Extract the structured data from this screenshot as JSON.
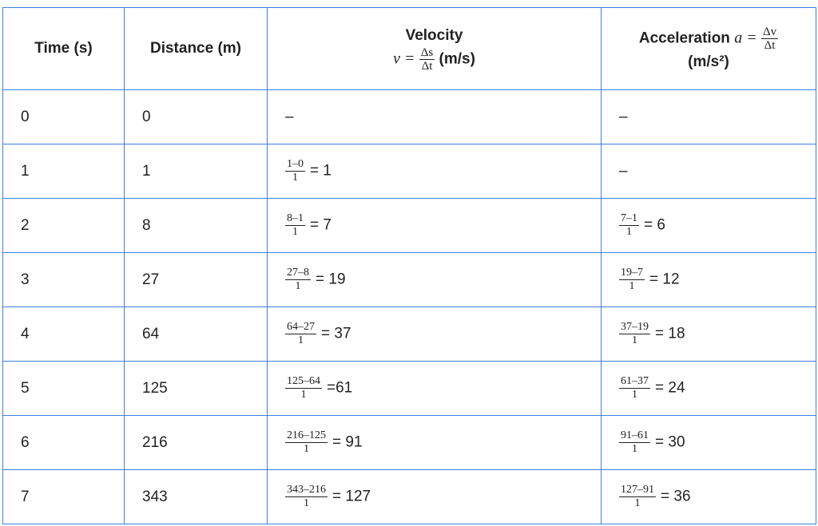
{
  "headers": {
    "time": "Time (s)",
    "distance": "Distance (m)",
    "velocity_title": "Velocity",
    "velocity_lhs": "v =",
    "velocity_num": "Δs",
    "velocity_den": "Δt",
    "velocity_unit": "(m/s)",
    "accel_title": "Acceleration",
    "accel_lhs": "a =",
    "accel_num": "Δv",
    "accel_den": "Δt",
    "accel_unit": "(m/s²)"
  },
  "rows": [
    {
      "time": "0",
      "distance": "0",
      "velocity": {
        "text": "–"
      },
      "acceleration": {
        "text": "–"
      }
    },
    {
      "time": "1",
      "distance": "1",
      "velocity": {
        "num": "1–0",
        "den": "1",
        "result": "= 1"
      },
      "acceleration": {
        "text": "–"
      }
    },
    {
      "time": "2",
      "distance": "8",
      "velocity": {
        "num": "8–1",
        "den": "1",
        "result": "= 7"
      },
      "acceleration": {
        "num": "7–1",
        "den": "1",
        "result": "= 6"
      }
    },
    {
      "time": "3",
      "distance": "27",
      "velocity": {
        "num": "27–8",
        "den": "1",
        "result": "= 19"
      },
      "acceleration": {
        "num": "19–7",
        "den": "1",
        "result": "= 12"
      }
    },
    {
      "time": "4",
      "distance": "64",
      "velocity": {
        "num": "64–27",
        "den": "1",
        "result": "= 37"
      },
      "acceleration": {
        "num": "37–19",
        "den": "1",
        "result": "= 18"
      }
    },
    {
      "time": "5",
      "distance": "125",
      "velocity": {
        "num": "125–64",
        "den": "1",
        "result": "=61"
      },
      "acceleration": {
        "num": "61–37",
        "den": "1",
        "result": "= 24"
      }
    },
    {
      "time": "6",
      "distance": "216",
      "velocity": {
        "num": "216–125",
        "den": "1",
        "result": "= 91"
      },
      "acceleration": {
        "num": "91–61",
        "den": "1",
        "result": "= 30"
      }
    },
    {
      "time": "7",
      "distance": "343",
      "velocity": {
        "num": "343–216",
        "den": "1",
        "result": "= 127"
      },
      "acceleration": {
        "num": "127–91",
        "den": "1",
        "result": "= 36"
      }
    }
  ],
  "colors": {
    "border": "#3f7fe0",
    "text": "#222222"
  }
}
